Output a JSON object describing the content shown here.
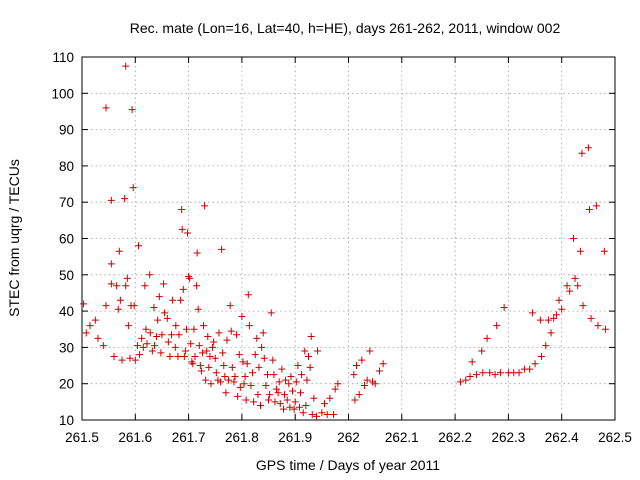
{
  "chart_data": {
    "type": "scatter",
    "title": "Rec. mate (Lon=16, Lat=40, h=HE), days 261-262, 2011, window 002",
    "xlabel": "GPS time / Days of year 2011",
    "ylabel": "STEC from uqrg / TECUs",
    "xlim": [
      261.5,
      262.5
    ],
    "ylim": [
      10,
      110
    ],
    "x_ticks": [
      261.5,
      261.6,
      261.7,
      261.8,
      261.9,
      262.0,
      262.1,
      262.2,
      262.3,
      262.4,
      262.5
    ],
    "x_tick_labels": [
      "261.5",
      "261.6",
      "261.7",
      "261.8",
      "261.9",
      "262",
      "262.1",
      "262.2",
      "262.3",
      "262.4",
      "262.5"
    ],
    "y_ticks": [
      10,
      20,
      30,
      40,
      50,
      60,
      70,
      80,
      90,
      100,
      110
    ],
    "y_tick_labels": [
      "10",
      "20",
      "30",
      "40",
      "50",
      "60",
      "70",
      "80",
      "90",
      "100",
      "110"
    ],
    "grid": true,
    "marker": "+",
    "color": "#cc0000",
    "points": [
      [
        261.503,
        42.0
      ],
      [
        261.508,
        34.0
      ],
      [
        261.515,
        36.0
      ],
      [
        261.525,
        37.5
      ],
      [
        261.53,
        32.5
      ],
      [
        261.54,
        30.5
      ],
      [
        261.545,
        96.0
      ],
      [
        261.545,
        41.5
      ],
      [
        261.555,
        70.5
      ],
      [
        261.555,
        53.0
      ],
      [
        261.555,
        47.5
      ],
      [
        261.56,
        27.5
      ],
      [
        261.565,
        47.0
      ],
      [
        261.568,
        40.5
      ],
      [
        261.57,
        56.5
      ],
      [
        261.572,
        43.0
      ],
      [
        261.575,
        26.5
      ],
      [
        261.58,
        71.0
      ],
      [
        261.582,
        107.5
      ],
      [
        261.582,
        47.0
      ],
      [
        261.585,
        49.0
      ],
      [
        261.587,
        36.0
      ],
      [
        261.59,
        27.0
      ],
      [
        261.592,
        41.5
      ],
      [
        261.594,
        95.5
      ],
      [
        261.596,
        74.0
      ],
      [
        261.598,
        41.5
      ],
      [
        261.6,
        26.5
      ],
      [
        261.604,
        30.5
      ],
      [
        261.606,
        58.0
      ],
      [
        261.608,
        28.0
      ],
      [
        261.612,
        32.5
      ],
      [
        261.615,
        30.0
      ],
      [
        261.618,
        47.0
      ],
      [
        261.62,
        35.0
      ],
      [
        261.622,
        31.0
      ],
      [
        261.627,
        50.0
      ],
      [
        261.628,
        34.0
      ],
      [
        261.632,
        29.0
      ],
      [
        261.635,
        41.0
      ],
      [
        261.636,
        30.5
      ],
      [
        261.64,
        33.0
      ],
      [
        261.642,
        37.5
      ],
      [
        261.645,
        44.0
      ],
      [
        261.648,
        28.5
      ],
      [
        261.65,
        33.5
      ],
      [
        261.653,
        47.5
      ],
      [
        261.655,
        39.5
      ],
      [
        261.66,
        38.0
      ],
      [
        261.662,
        31.5
      ],
      [
        261.665,
        27.5
      ],
      [
        261.668,
        33.5
      ],
      [
        261.67,
        43.0
      ],
      [
        261.675,
        30.0
      ],
      [
        261.676,
        36.0
      ],
      [
        261.68,
        27.5
      ],
      [
        261.682,
        33.5
      ],
      [
        261.685,
        43.0
      ],
      [
        261.687,
        68.0
      ],
      [
        261.688,
        62.5
      ],
      [
        261.69,
        46.0
      ],
      [
        261.692,
        27.5
      ],
      [
        261.694,
        29.0
      ],
      [
        261.696,
        35.0
      ],
      [
        261.698,
        61.5
      ],
      [
        261.7,
        49.5
      ],
      [
        261.702,
        49.0
      ],
      [
        261.704,
        31.0
      ],
      [
        261.706,
        26.0
      ],
      [
        261.708,
        25.5
      ],
      [
        261.71,
        35.0
      ],
      [
        261.712,
        27.5
      ],
      [
        261.715,
        47.0
      ],
      [
        261.716,
        56.0
      ],
      [
        261.718,
        40.5
      ],
      [
        261.72,
        30.5
      ],
      [
        261.722,
        25.0
      ],
      [
        261.724,
        23.5
      ],
      [
        261.726,
        28.5
      ],
      [
        261.728,
        36.0
      ],
      [
        261.73,
        69.0
      ],
      [
        261.732,
        21.0
      ],
      [
        261.734,
        29.0
      ],
      [
        261.736,
        33.0
      ],
      [
        261.738,
        24.5
      ],
      [
        261.74,
        27.5
      ],
      [
        261.742,
        20.0
      ],
      [
        261.745,
        30.0
      ],
      [
        261.747,
        31.5
      ],
      [
        261.75,
        27.0
      ],
      [
        261.752,
        23.0
      ],
      [
        261.755,
        21.0
      ],
      [
        261.757,
        34.0
      ],
      [
        261.76,
        20.5
      ],
      [
        261.762,
        57.0
      ],
      [
        261.764,
        28.5
      ],
      [
        261.766,
        25.0
      ],
      [
        261.768,
        22.0
      ],
      [
        261.77,
        17.5
      ],
      [
        261.772,
        32.0
      ],
      [
        261.775,
        21.0
      ],
      [
        261.778,
        41.5
      ],
      [
        261.78,
        34.5
      ],
      [
        261.782,
        24.5
      ],
      [
        261.785,
        20.5
      ],
      [
        261.787,
        22.0
      ],
      [
        261.79,
        33.5
      ],
      [
        261.792,
        16.5
      ],
      [
        261.795,
        28.0
      ],
      [
        261.797,
        19.0
      ],
      [
        261.8,
        38.5
      ],
      [
        261.802,
        26.0
      ],
      [
        261.804,
        20.0
      ],
      [
        261.806,
        22.0
      ],
      [
        261.808,
        15.5
      ],
      [
        261.81,
        25.5
      ],
      [
        261.812,
        44.5
      ],
      [
        261.814,
        36.0
      ],
      [
        261.817,
        19.5
      ],
      [
        261.82,
        23.0
      ],
      [
        261.822,
        15.0
      ],
      [
        261.825,
        28.0
      ],
      [
        261.828,
        32.5
      ],
      [
        261.83,
        17.0
      ],
      [
        261.832,
        24.5
      ],
      [
        261.835,
        14.0
      ],
      [
        261.837,
        30.0
      ],
      [
        261.84,
        34.0
      ],
      [
        261.842,
        27.0
      ],
      [
        261.845,
        19.5
      ],
      [
        261.848,
        22.5
      ],
      [
        261.85,
        15.5
      ],
      [
        261.852,
        17.0
      ],
      [
        261.855,
        39.5
      ],
      [
        261.858,
        26.5
      ],
      [
        261.86,
        22.5
      ],
      [
        261.862,
        15.0
      ],
      [
        261.865,
        18.5
      ],
      [
        261.868,
        17.5
      ],
      [
        261.87,
        20.5
      ],
      [
        261.872,
        14.5
      ],
      [
        261.875,
        24.0
      ],
      [
        261.878,
        13.0
      ],
      [
        261.88,
        17.0
      ],
      [
        261.882,
        21.0
      ],
      [
        261.885,
        15.5
      ],
      [
        261.888,
        20.0
      ],
      [
        261.89,
        13.5
      ],
      [
        261.892,
        22.0
      ],
      [
        261.895,
        18.0
      ],
      [
        261.898,
        13.0
      ],
      [
        261.9,
        15.0
      ],
      [
        261.902,
        20.5
      ],
      [
        261.905,
        25.0
      ],
      [
        261.908,
        13.5
      ],
      [
        261.91,
        17.5
      ],
      [
        261.912,
        22.5
      ],
      [
        261.915,
        12.0
      ],
      [
        261.918,
        29.0
      ],
      [
        261.92,
        14.0
      ],
      [
        261.922,
        21.0
      ],
      [
        261.925,
        27.5
      ],
      [
        261.928,
        24.5
      ],
      [
        261.93,
        33.0
      ],
      [
        261.932,
        11.5
      ],
      [
        261.935,
        16.0
      ],
      [
        261.94,
        11.0
      ],
      [
        261.942,
        29.0
      ],
      [
        261.95,
        12.0
      ],
      [
        261.955,
        14.5
      ],
      [
        261.96,
        11.5
      ],
      [
        261.965,
        16.0
      ],
      [
        261.972,
        11.5
      ],
      [
        261.975,
        18.5
      ],
      [
        261.98,
        20.0
      ],
      [
        262.01,
        22.5
      ],
      [
        262.012,
        15.5
      ],
      [
        262.015,
        25.0
      ],
      [
        262.02,
        17.0
      ],
      [
        262.025,
        26.5
      ],
      [
        262.03,
        19.5
      ],
      [
        262.035,
        21.0
      ],
      [
        262.04,
        29.0
      ],
      [
        262.045,
        20.5
      ],
      [
        262.05,
        20.0
      ],
      [
        262.058,
        23.5
      ],
      [
        262.065,
        25.5
      ],
      [
        262.21,
        20.5
      ],
      [
        262.22,
        21.0
      ],
      [
        262.228,
        22.0
      ],
      [
        262.232,
        26.0
      ],
      [
        262.24,
        22.5
      ],
      [
        262.25,
        29.0
      ],
      [
        262.252,
        23.0
      ],
      [
        262.26,
        32.5
      ],
      [
        262.265,
        23.0
      ],
      [
        262.275,
        22.5
      ],
      [
        262.278,
        36.0
      ],
      [
        262.285,
        23.0
      ],
      [
        262.292,
        41.0
      ],
      [
        262.3,
        23.0
      ],
      [
        262.31,
        23.0
      ],
      [
        262.32,
        23.0
      ],
      [
        262.33,
        24.0
      ],
      [
        262.34,
        24.0
      ],
      [
        262.345,
        39.5
      ],
      [
        262.35,
        25.5
      ],
      [
        262.36,
        37.5
      ],
      [
        262.362,
        27.5
      ],
      [
        262.37,
        30.5
      ],
      [
        262.375,
        37.5
      ],
      [
        262.38,
        34.0
      ],
      [
        262.385,
        38.0
      ],
      [
        262.39,
        39.0
      ],
      [
        262.395,
        43.0
      ],
      [
        262.4,
        40.5
      ],
      [
        262.41,
        47.0
      ],
      [
        262.415,
        45.5
      ],
      [
        262.422,
        60.0
      ],
      [
        262.425,
        49.0
      ],
      [
        262.43,
        47.0
      ],
      [
        262.435,
        56.5
      ],
      [
        262.438,
        83.5
      ],
      [
        262.44,
        41.5
      ],
      [
        262.45,
        85.0
      ],
      [
        262.452,
        68.0
      ],
      [
        262.455,
        38.0
      ],
      [
        262.465,
        69.0
      ],
      [
        262.468,
        36.0
      ],
      [
        262.48,
        56.5
      ],
      [
        262.482,
        35.0
      ]
    ]
  }
}
